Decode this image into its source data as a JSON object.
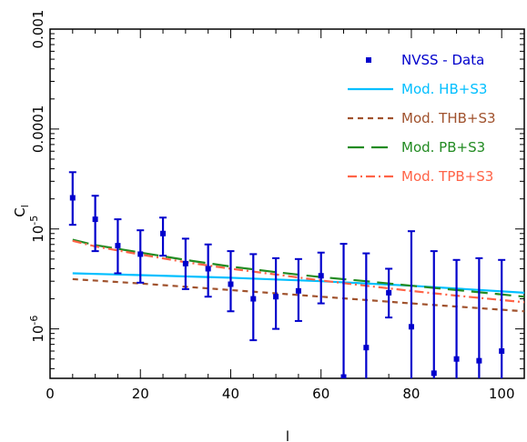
{
  "chart_data": {
    "type": "scatter",
    "title": "",
    "xlabel": "l",
    "ylabel": "C",
    "ylabel_subscript": "l",
    "xlim": [
      0,
      105
    ],
    "ylim": [
      3.2e-07,
      0.001
    ],
    "yscale": "log",
    "grid": false,
    "legend_position": "top-right",
    "x_ticks": [
      {
        "value": 0,
        "label": "0"
      },
      {
        "value": 20,
        "label": "20"
      },
      {
        "value": 40,
        "label": "40"
      },
      {
        "value": 60,
        "label": "60"
      },
      {
        "value": 80,
        "label": "80"
      },
      {
        "value": 100,
        "label": "100"
      }
    ],
    "y_ticks": [
      {
        "value": 1e-06,
        "mantissa": "10",
        "exponent": "-6",
        "label": ""
      },
      {
        "value": 1e-05,
        "mantissa": "10",
        "exponent": "-5",
        "label": ""
      },
      {
        "value": 0.0001,
        "mantissa": "",
        "exponent": "",
        "label": "0.0001"
      },
      {
        "value": 0.001,
        "mantissa": "",
        "exponent": "",
        "label": "0.001"
      }
    ],
    "data_series": {
      "name": "NVSS - Data",
      "color": "#0000cc",
      "points": [
        {
          "x": 5,
          "y": 2.05e-05,
          "ylo": 1.1e-05,
          "yhi": 3.7e-05
        },
        {
          "x": 10,
          "y": 1.25e-05,
          "ylo": 6e-06,
          "yhi": 2.15e-05
        },
        {
          "x": 15,
          "y": 6.8e-06,
          "ylo": 3.6e-06,
          "yhi": 1.25e-05
        },
        {
          "x": 20,
          "y": 5.6e-06,
          "ylo": 2.9e-06,
          "yhi": 9.7e-06
        },
        {
          "x": 25,
          "y": 9e-06,
          "ylo": 5.4e-06,
          "yhi": 1.3e-05
        },
        {
          "x": 30,
          "y": 4.5e-06,
          "ylo": 2.5e-06,
          "yhi": 8e-06
        },
        {
          "x": 35,
          "y": 4e-06,
          "ylo": 2.1e-06,
          "yhi": 7e-06
        },
        {
          "x": 40,
          "y": 2.8e-06,
          "ylo": 1.5e-06,
          "yhi": 6e-06
        },
        {
          "x": 45,
          "y": 2e-06,
          "ylo": 7.7e-07,
          "yhi": 5.6e-06
        },
        {
          "x": 50,
          "y": 2.1e-06,
          "ylo": 1e-06,
          "yhi": 5.1e-06
        },
        {
          "x": 55,
          "y": 2.4e-06,
          "ylo": 1.2e-06,
          "yhi": 5e-06
        },
        {
          "x": 60,
          "y": 3.4e-06,
          "ylo": 1.8e-06,
          "yhi": 5.8e-06
        },
        {
          "x": 65,
          "y": 3.3e-07,
          "ylo": 3.2e-07,
          "yhi": 7.1e-06
        },
        {
          "x": 70,
          "y": 6.5e-07,
          "ylo": 3.2e-07,
          "yhi": 5.7e-06
        },
        {
          "x": 75,
          "y": 2.3e-06,
          "ylo": 1.3e-06,
          "yhi": 4e-06
        },
        {
          "x": 80,
          "y": 1.05e-06,
          "ylo": 3.2e-07,
          "yhi": 9.5e-06
        },
        {
          "x": 85,
          "y": 3.6e-07,
          "ylo": 3.2e-07,
          "yhi": 6e-06
        },
        {
          "x": 90,
          "y": 5e-07,
          "ylo": 3.2e-07,
          "yhi": 4.9e-06
        },
        {
          "x": 95,
          "y": 4.8e-07,
          "ylo": 3.2e-07,
          "yhi": 5.1e-06
        },
        {
          "x": 100,
          "y": 6e-07,
          "ylo": 3.2e-07,
          "yhi": 4.9e-06
        }
      ]
    },
    "model_series": [
      {
        "name": "Mod. HB+S3",
        "color": "#00bfff",
        "dash": "solid",
        "points": [
          [
            5,
            3.6e-06
          ],
          [
            20,
            3.45e-06
          ],
          [
            40,
            3.25e-06
          ],
          [
            60,
            3e-06
          ],
          [
            80,
            2.7e-06
          ],
          [
            105,
            2.3e-06
          ]
        ]
      },
      {
        "name": "Mod. THB+S3",
        "color": "#a0522d",
        "dash": "short-dash",
        "points": [
          [
            5,
            3.15e-06
          ],
          [
            20,
            2.85e-06
          ],
          [
            40,
            2.45e-06
          ],
          [
            60,
            2.1e-06
          ],
          [
            80,
            1.8e-06
          ],
          [
            105,
            1.5e-06
          ]
        ]
      },
      {
        "name": "Mod. PB+S3",
        "color": "#228b22",
        "dash": "long-dash",
        "points": [
          [
            5,
            7.8e-06
          ],
          [
            10,
            6.9e-06
          ],
          [
            20,
            5.8e-06
          ],
          [
            30,
            4.9e-06
          ],
          [
            40,
            4.2e-06
          ],
          [
            50,
            3.7e-06
          ],
          [
            60,
            3.3e-06
          ],
          [
            70,
            3e-06
          ],
          [
            80,
            2.7e-06
          ],
          [
            90,
            2.45e-06
          ],
          [
            105,
            2.1e-06
          ]
        ]
      },
      {
        "name": "Mod. TPB+S3",
        "color": "#ff6347",
        "dash": "dash-dot",
        "points": [
          [
            5,
            7.6e-06
          ],
          [
            10,
            6.7e-06
          ],
          [
            20,
            5.55e-06
          ],
          [
            30,
            4.65e-06
          ],
          [
            40,
            4e-06
          ],
          [
            50,
            3.5e-06
          ],
          [
            60,
            3.05e-06
          ],
          [
            70,
            2.7e-06
          ],
          [
            80,
            2.4e-06
          ],
          [
            90,
            2.15e-06
          ],
          [
            105,
            1.85e-06
          ]
        ]
      }
    ]
  }
}
